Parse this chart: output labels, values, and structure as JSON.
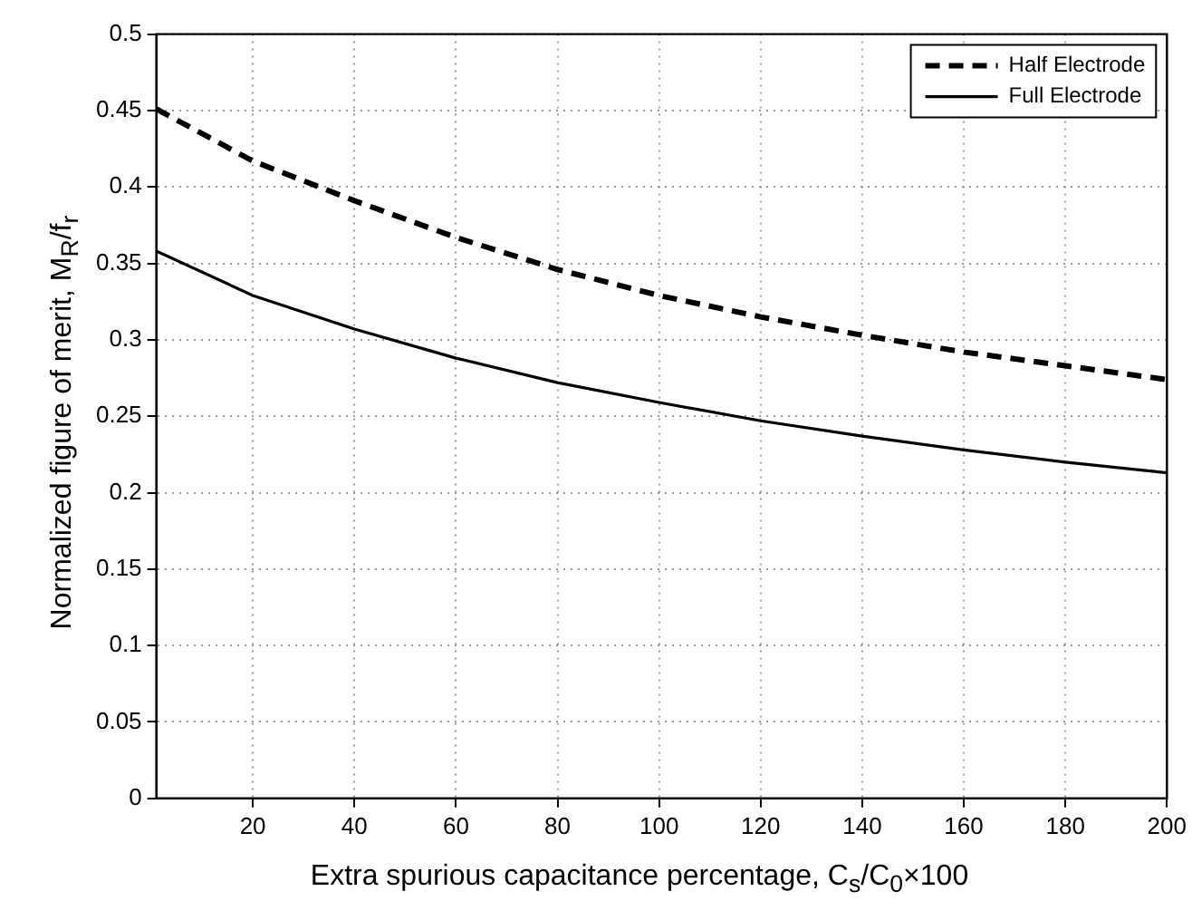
{
  "chart_data": {
    "type": "line",
    "xlabel": "Extra spurious capacitance percentage, C$_{s}$/C$_{0}$×100",
    "ylabel": "Normalized figure of merit, M$_{R}$/f$_{r}$",
    "x": [
      1,
      20,
      40,
      60,
      80,
      100,
      120,
      140,
      160,
      180,
      200
    ],
    "series": [
      {
        "name": "Half Electrode",
        "color": "#000000",
        "line_style": "dashed",
        "values": [
          0.451,
          0.417,
          0.391,
          0.367,
          0.346,
          0.329,
          0.315,
          0.303,
          0.292,
          0.283,
          0.274
        ]
      },
      {
        "name": "Full Electrode",
        "color": "#000000",
        "line_style": "solid",
        "values": [
          0.358,
          0.329,
          0.307,
          0.288,
          0.272,
          0.259,
          0.247,
          0.237,
          0.228,
          0.22,
          0.213
        ]
      }
    ],
    "xlim": [
      1,
      200
    ],
    "xticks": [
      20,
      40,
      60,
      80,
      100,
      120,
      140,
      160,
      180,
      200
    ],
    "ylim": [
      0,
      0.5
    ],
    "yticks": [
      0,
      0.05,
      0.1,
      0.15,
      0.2,
      0.25,
      0.3,
      0.35,
      0.4,
      0.45,
      0.5
    ],
    "grid": true,
    "legend": "top right",
    "marker": "none"
  }
}
